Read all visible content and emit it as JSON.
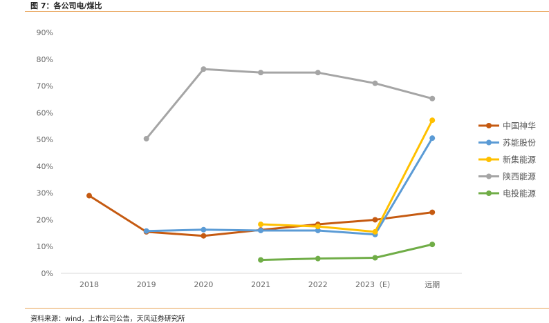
{
  "figure": {
    "title": "图 7：各公司电/煤比",
    "source": "资料来源：wind，上市公司公告，天风证券研究所"
  },
  "chart_data": {
    "type": "line",
    "categories": [
      "2018",
      "2019",
      "2020",
      "2021",
      "2022",
      "2023（E）",
      "远期"
    ],
    "y_ticks": [
      "0%",
      "10%",
      "20%",
      "30%",
      "40%",
      "50%",
      "60%",
      "70%",
      "80%",
      "90%"
    ],
    "ylim": [
      0,
      90
    ],
    "grid": false,
    "legend_position": "right",
    "series": [
      {
        "name": "中国神华",
        "color": "#c55a11",
        "values": [
          29,
          15.5,
          14,
          16.2,
          18.3,
          20,
          22.8
        ]
      },
      {
        "name": "苏能股份",
        "color": "#5b9bd5",
        "values": [
          null,
          15.8,
          16.3,
          16,
          16,
          14.5,
          50.5
        ]
      },
      {
        "name": "新集能源",
        "color": "#ffc000",
        "values": [
          null,
          null,
          null,
          18.3,
          17.5,
          15.5,
          57.2
        ]
      },
      {
        "name": "陕西能源",
        "color": "#a5a5a5",
        "values": [
          null,
          50.3,
          76.3,
          75,
          75,
          71,
          65.3
        ]
      },
      {
        "name": "电投能源",
        "color": "#70ad47",
        "values": [
          null,
          null,
          null,
          5,
          5.5,
          5.8,
          10.8
        ]
      }
    ]
  }
}
